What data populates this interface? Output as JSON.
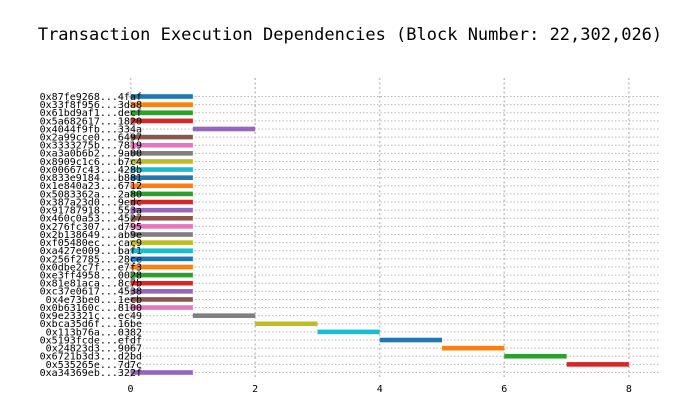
{
  "chart_data": {
    "type": "bar",
    "orientation": "horizontal",
    "title": "Transaction Execution Dependencies (Block Number: 22,302,026)",
    "xlabel": "",
    "ylabel": "",
    "xlim": [
      -0.25,
      8.5
    ],
    "xticks": [
      0,
      2,
      4,
      6,
      8
    ],
    "grid": true,
    "grid_style": "dotted",
    "legend": "none",
    "bars": [
      {
        "tx": "0x87fe9268...4faf",
        "start": 0,
        "end": 1,
        "color": "#1f77b4"
      },
      {
        "tx": "0x33f8f956...3da8",
        "start": 0,
        "end": 1,
        "color": "#ff7f0e"
      },
      {
        "tx": "0x61bd9af1...decf",
        "start": 0,
        "end": 1,
        "color": "#2ca02c"
      },
      {
        "tx": "0x5a682617...1820",
        "start": 0,
        "end": 1,
        "color": "#d62728"
      },
      {
        "tx": "0x4044f9fb...334a",
        "start": 1,
        "end": 2,
        "color": "#9467bd"
      },
      {
        "tx": "0x2a99cce0...6497",
        "start": 0,
        "end": 1,
        "color": "#8c564b"
      },
      {
        "tx": "0x3333275b...7819",
        "start": 0,
        "end": 1,
        "color": "#e377c2"
      },
      {
        "tx": "0xa3a0b6b2...9a00",
        "start": 0,
        "end": 1,
        "color": "#7f7f7f"
      },
      {
        "tx": "0x8909c1c6...b7c4",
        "start": 0,
        "end": 1,
        "color": "#bcbd22"
      },
      {
        "tx": "0x00667c43...428b",
        "start": 0,
        "end": 1,
        "color": "#17becf"
      },
      {
        "tx": "0x833e9184...b881",
        "start": 0,
        "end": 1,
        "color": "#1f77b4"
      },
      {
        "tx": "0x1e840a23...6712",
        "start": 0,
        "end": 1,
        "color": "#ff7f0e"
      },
      {
        "tx": "0x5083362a...2a80",
        "start": 0,
        "end": 1,
        "color": "#2ca02c"
      },
      {
        "tx": "0x387a23d0...9edc",
        "start": 0,
        "end": 1,
        "color": "#d62728"
      },
      {
        "tx": "0x91787918...553a",
        "start": 0,
        "end": 1,
        "color": "#9467bd"
      },
      {
        "tx": "0x460c0a53...4527",
        "start": 0,
        "end": 1,
        "color": "#8c564b"
      },
      {
        "tx": "0x276fc307...d795",
        "start": 0,
        "end": 1,
        "color": "#e377c2"
      },
      {
        "tx": "0x2b138649...ab9e",
        "start": 0,
        "end": 1,
        "color": "#7f7f7f"
      },
      {
        "tx": "0xf05480ec...cac9",
        "start": 0,
        "end": 1,
        "color": "#bcbd22"
      },
      {
        "tx": "0xa427e009...baf1",
        "start": 0,
        "end": 1,
        "color": "#17becf"
      },
      {
        "tx": "0x256f2785...28ce",
        "start": 0,
        "end": 1,
        "color": "#1f77b4"
      },
      {
        "tx": "0x0dbe2c7f...e7f3",
        "start": 0,
        "end": 1,
        "color": "#ff7f0e"
      },
      {
        "tx": "0xe3ff4958...0028",
        "start": 0,
        "end": 1,
        "color": "#2ca02c"
      },
      {
        "tx": "0x81e81aca...8c7b",
        "start": 0,
        "end": 1,
        "color": "#d62728"
      },
      {
        "tx": "0xc37e0617...4538",
        "start": 0,
        "end": 1,
        "color": "#9467bd"
      },
      {
        "tx": "0x4e73be0...1ecb",
        "start": 0,
        "end": 1,
        "color": "#8c564b"
      },
      {
        "tx": "0x0b63160c...8100",
        "start": 0,
        "end": 1,
        "color": "#e377c2"
      },
      {
        "tx": "0x9e23321c...ec49",
        "start": 1,
        "end": 2,
        "color": "#7f7f7f"
      },
      {
        "tx": "0xbca35d6f...16be",
        "start": 2,
        "end": 3,
        "color": "#bcbd22"
      },
      {
        "tx": "0x113b76a...0382",
        "start": 3,
        "end": 4,
        "color": "#17becf"
      },
      {
        "tx": "0x5193fcde...efdf",
        "start": 4,
        "end": 5,
        "color": "#1f77b4"
      },
      {
        "tx": "0x24823d3...9067",
        "start": 5,
        "end": 6,
        "color": "#ff7f0e"
      },
      {
        "tx": "0x6721b3d3...d2bd",
        "start": 6,
        "end": 7,
        "color": "#2ca02c"
      },
      {
        "tx": "0x535265e...7d7c",
        "start": 7,
        "end": 8,
        "color": "#d62728"
      },
      {
        "tx": "0xa34369eb...322f",
        "start": 0,
        "end": 1,
        "color": "#9467bd"
      }
    ]
  }
}
